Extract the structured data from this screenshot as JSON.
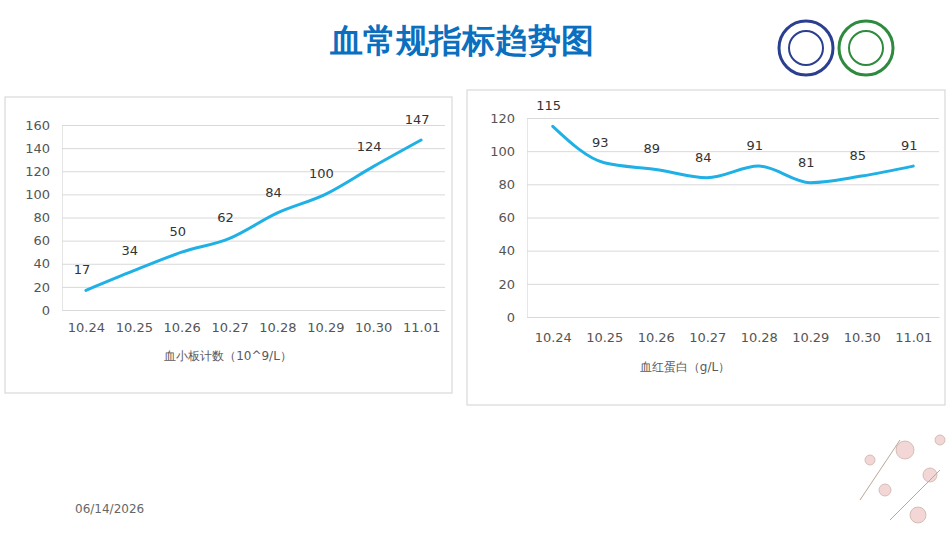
{
  "title": "血常规指标趋势图",
  "date": "06/14/2026",
  "chart_data": [
    {
      "type": "line",
      "x_label": "血小板计数（10^9/L）",
      "categories": [
        "10.24",
        "10.25",
        "10.26",
        "10.27",
        "10.28",
        "10.29",
        "10.30",
        "11.01"
      ],
      "values": [
        17,
        34,
        50,
        62,
        84,
        100,
        124,
        147
      ],
      "color": "#1fb0e6",
      "ylim": [
        0,
        160
      ],
      "yticks": [
        0,
        20,
        40,
        60,
        80,
        100,
        120,
        140,
        160
      ],
      "grid": true,
      "data_labels": true,
      "line_style": "smooth"
    },
    {
      "type": "line",
      "x_label": "血红蛋白（g/L）",
      "categories": [
        "10.24",
        "10.25",
        "10.26",
        "10.27",
        "10.28",
        "10.29",
        "10.30",
        "11.01"
      ],
      "values": [
        115,
        93,
        89,
        84,
        91,
        81,
        85,
        91
      ],
      "color": "#1fb0e6",
      "ylim": [
        0,
        120
      ],
      "yticks": [
        0,
        20,
        40,
        60,
        80,
        100,
        120
      ],
      "grid": true,
      "data_labels": true,
      "line_style": "smooth"
    }
  ]
}
